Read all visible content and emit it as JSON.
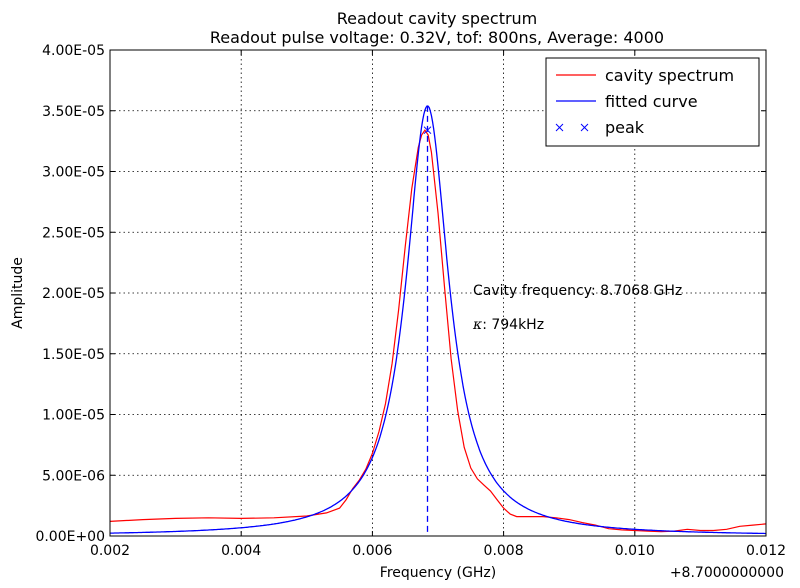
{
  "chart_data": {
    "type": "line",
    "title": "Readout cavity spectrum",
    "subtitle": "Readout pulse voltage: 0.32V, tof: 800ns, Average: 4000",
    "xlabel": "Frequency (GHz)",
    "ylabel": "Amplitude",
    "x_offset_label": "+8.7000000000",
    "xlim": [
      0.002,
      0.012
    ],
    "ylim": [
      0,
      4e-05
    ],
    "x_ticks": [
      0.002,
      0.004,
      0.006,
      0.008,
      0.01,
      0.012
    ],
    "x_tick_labels": [
      "0.002",
      "0.004",
      "0.006",
      "0.008",
      "0.010",
      "0.012"
    ],
    "y_ticks": [
      0,
      5e-06,
      1e-05,
      1.5e-05,
      2e-05,
      2.5e-05,
      3e-05,
      3.5e-05,
      4e-05
    ],
    "y_tick_labels": [
      "0.00E+00",
      "5.00E-06",
      "1.00E-05",
      "1.50E-05",
      "2.00E-05",
      "2.50E-05",
      "3.00E-05",
      "3.50E-05",
      "4.00E-05"
    ],
    "grid": true,
    "legend_position": "top-right",
    "series": [
      {
        "name": "cavity spectrum",
        "color": "#ff0000",
        "style": "line",
        "x": [
          0.002,
          0.0025,
          0.003,
          0.0035,
          0.004,
          0.0045,
          0.005,
          0.0053,
          0.0055,
          0.0056,
          0.0057,
          0.0058,
          0.0059,
          0.006,
          0.0061,
          0.0062,
          0.0063,
          0.0064,
          0.0065,
          0.0066,
          0.0067,
          0.00675,
          0.0068,
          0.00685,
          0.0069,
          0.007,
          0.0071,
          0.0072,
          0.0073,
          0.0074,
          0.0075,
          0.0076,
          0.0077,
          0.0078,
          0.0079,
          0.008,
          0.0081,
          0.0082,
          0.0084,
          0.0086,
          0.0088,
          0.009,
          0.0092,
          0.0094,
          0.0096,
          0.0098,
          0.01,
          0.0102,
          0.0104,
          0.0106,
          0.0108,
          0.011,
          0.0112,
          0.0114,
          0.0116,
          0.0118,
          0.012
        ],
        "y": [
          1.2e-06,
          1.35e-06,
          1.45e-06,
          1.5e-06,
          1.45e-06,
          1.5e-06,
          1.65e-06,
          1.9e-06,
          2.3e-06,
          3e-06,
          3.9e-06,
          4.6e-06,
          5.5e-06,
          6.8e-06,
          8.6e-06,
          1.09e-05,
          1.42e-05,
          1.86e-05,
          2.38e-05,
          2.86e-05,
          3.2e-05,
          3.3e-05,
          3.34e-05,
          3.3e-05,
          3.16e-05,
          2.66e-05,
          2.04e-05,
          1.46e-05,
          1.03e-05,
          7.3e-06,
          5.6e-06,
          4.7e-06,
          4.2e-06,
          3.7e-06,
          3e-06,
          2.3e-06,
          1.8e-06,
          1.6e-06,
          1.6e-06,
          1.6e-06,
          1.5e-06,
          1.35e-06,
          1.1e-06,
          9e-07,
          6e-07,
          5e-07,
          4.5e-07,
          4e-07,
          3.5e-07,
          4e-07,
          5.5e-07,
          4.5e-07,
          4.5e-07,
          5.5e-07,
          8e-07,
          9e-07,
          1e-06
        ]
      },
      {
        "name": "fitted curve",
        "color": "#0000ff",
        "style": "line",
        "model": "lorentzian",
        "center": 0.00684,
        "amplitude": 3.54e-05,
        "hwhm": 0.000397,
        "baseline": 0.0
      },
      {
        "name": "peak",
        "color": "#0000ff",
        "style": "marker",
        "marker": "x",
        "x": [
          0.00684
        ],
        "y": [
          3.34e-05
        ]
      }
    ],
    "annotations": [
      {
        "text": "Cavity frequency: 8.7068 GHz",
        "x": 0.0075,
        "y": 2e-05
      },
      {
        "text": ": 794kHz",
        "prefix_symbol": "κ",
        "x": 0.0075,
        "y": 1.75e-05
      }
    ],
    "vertical_line": {
      "x": 0.00684,
      "style": "dashed",
      "color": "#0000ff"
    }
  }
}
